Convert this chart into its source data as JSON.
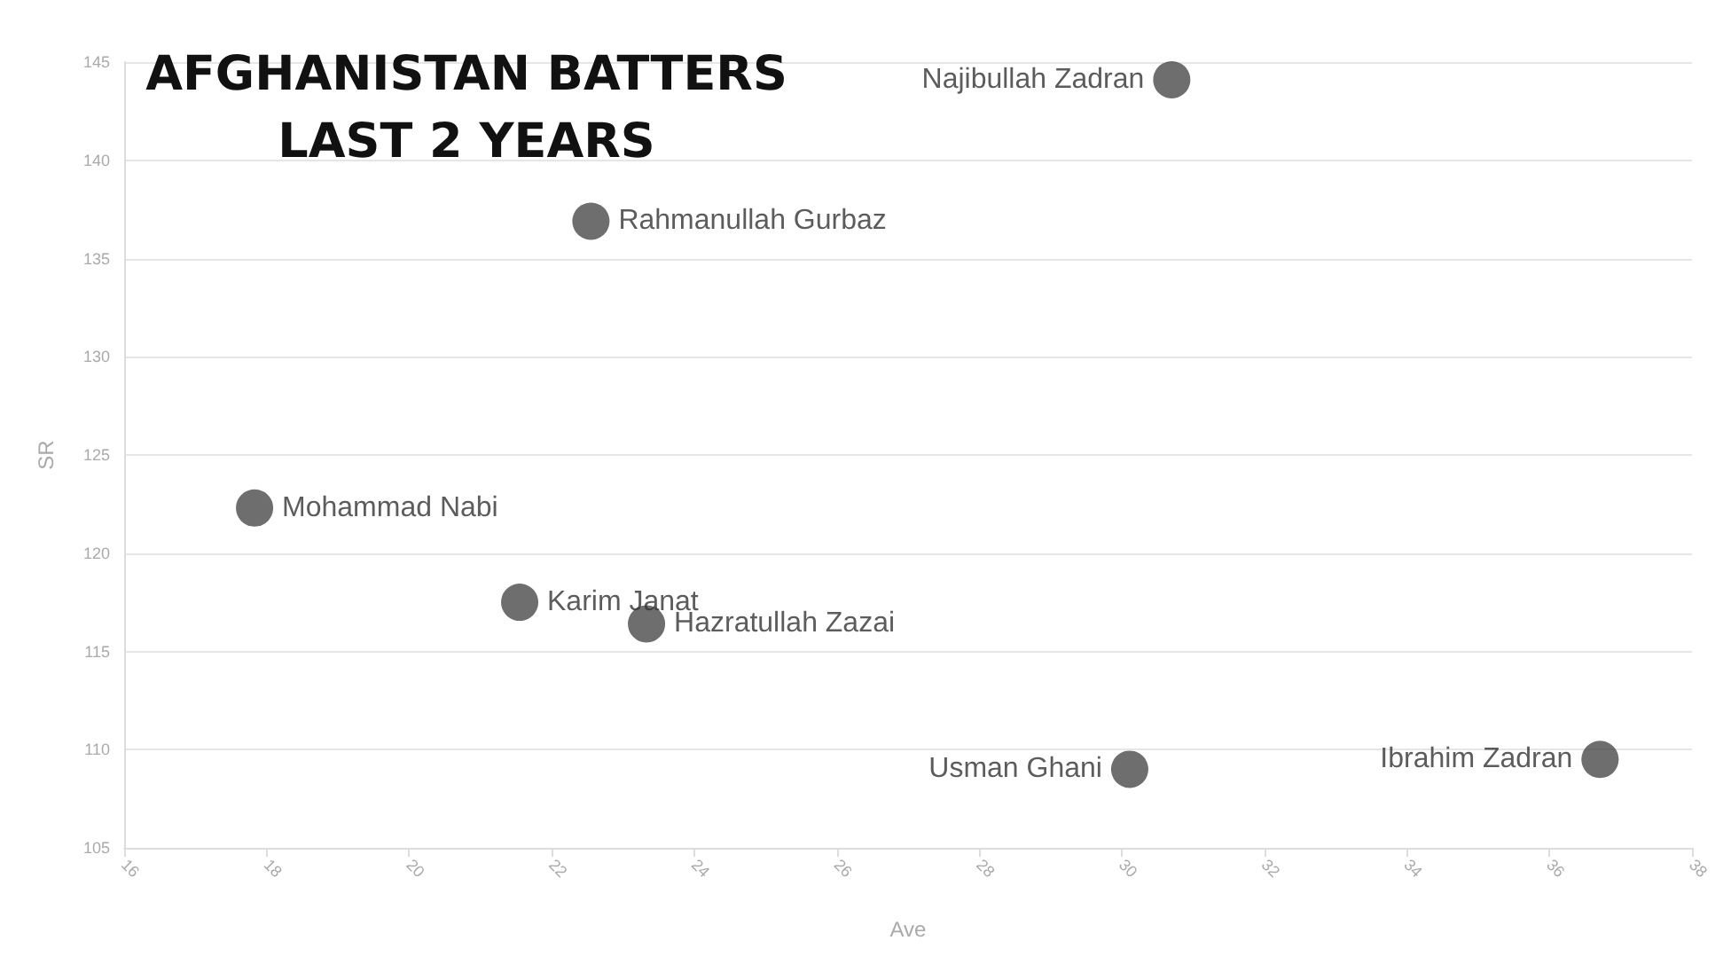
{
  "chart_data": {
    "type": "scatter",
    "title": "AFGHANISTAN BATTERS\nLAST 2 YEARS",
    "xlabel": "Ave",
    "ylabel": "SR",
    "series": [
      {
        "name": "Najibullah Zadran",
        "color": "#4a4a4a",
        "x": [
          30.7
        ],
        "values": [
          144.1
        ]
      },
      {
        "name": "Rahmanullah Gurbaz",
        "color": "#4a4a4a",
        "x": [
          22.55
        ],
        "values": [
          136.9
        ]
      },
      {
        "name": "Mohammad Nabi",
        "color": "#4a4a4a",
        "x": [
          17.83
        ],
        "values": [
          122.3
        ]
      },
      {
        "name": "Karim Janat",
        "color": "#4a4a4a",
        "x": [
          21.55
        ],
        "values": [
          117.5
        ]
      },
      {
        "name": "Hazratullah Zazai",
        "color": "#4a4a4a",
        "x": [
          23.33
        ],
        "values": [
          116.4
        ]
      },
      {
        "name": "Usman Ghani",
        "color": "#4a4a4a",
        "x": [
          30.11
        ],
        "values": [
          109.0
        ]
      },
      {
        "name": "Ibrahim Zadran",
        "color": "#4a4a4a",
        "x": [
          36.71
        ],
        "values": [
          109.5
        ]
      }
    ],
    "xlim": [
      16,
      38
    ],
    "xticks": [
      16,
      18,
      20,
      22,
      24,
      26,
      28,
      30,
      32,
      34,
      36,
      38
    ],
    "ylim": [
      105,
      145
    ],
    "yticks": [
      105,
      110,
      115,
      120,
      125,
      130,
      135,
      140,
      145
    ],
    "grid": "y",
    "legend": false,
    "marker": "circle"
  }
}
